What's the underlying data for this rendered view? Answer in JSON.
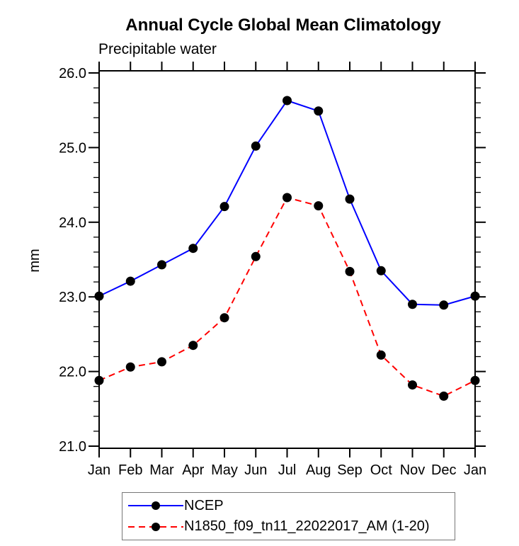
{
  "chart_data": {
    "type": "line",
    "title": "Annual Cycle Global Mean Climatology",
    "subtitle": "Precipitable water",
    "ylabel": "mm",
    "categories": [
      "Jan",
      "Feb",
      "Mar",
      "Apr",
      "May",
      "Jun",
      "Jul",
      "Aug",
      "Sep",
      "Oct",
      "Nov",
      "Dec",
      "Jan"
    ],
    "ylim": [
      21.0,
      26.0
    ],
    "ytick_major_interval": 1.0,
    "ytick_minor_interval": 0.2,
    "ytick_labels": [
      "21.0",
      "22.0",
      "23.0",
      "24.0",
      "25.0",
      "26.0"
    ],
    "grid": false,
    "axis_color": "#000000",
    "marker_color": "#000000",
    "legend_position": "bottom",
    "series": [
      {
        "name": "NCEP",
        "color": "#0000ff",
        "line_style": "solid",
        "dash": "none",
        "marker": "filled-circle",
        "values": [
          23.01,
          23.21,
          23.43,
          23.65,
          24.21,
          25.02,
          25.63,
          25.49,
          24.31,
          23.35,
          22.9,
          22.89,
          23.01
        ]
      },
      {
        "name": "N1850_f09_tn11_22022017_AM (1-20)",
        "color": "#ff0000",
        "line_style": "dashed",
        "dash": "9,6",
        "marker": "filled-circle",
        "values": [
          21.88,
          22.06,
          22.13,
          22.35,
          22.72,
          23.54,
          24.33,
          24.22,
          23.34,
          22.22,
          21.82,
          21.67,
          21.88
        ]
      }
    ]
  }
}
